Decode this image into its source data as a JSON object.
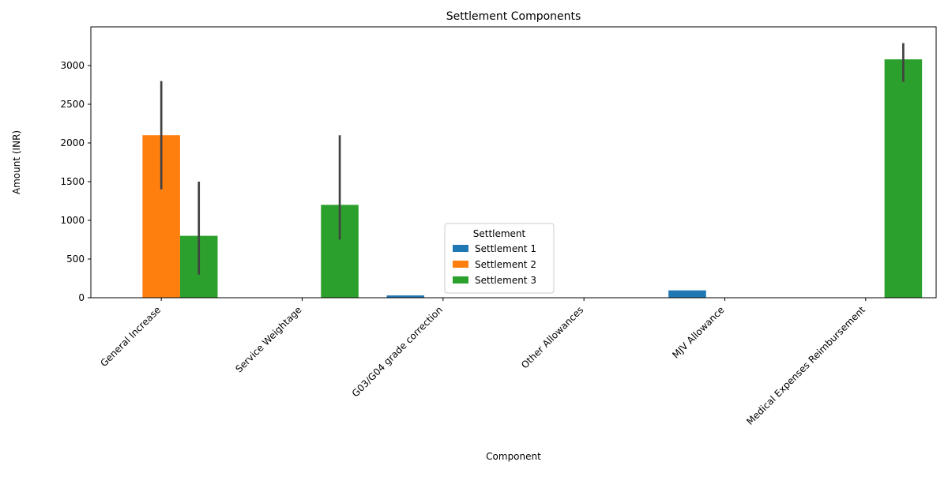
{
  "chart_data": {
    "type": "bar",
    "title": "Settlement Components",
    "xlabel": "Component",
    "ylabel": "Amount (INR)",
    "categories": [
      "General Increase",
      "Service Weightage",
      "G03/G04 grade correction",
      "Other Allowances",
      "MJV Allowance",
      "Medical Expenses Reimbursement"
    ],
    "ylim": [
      0,
      3500
    ],
    "yticks": [
      0,
      500,
      1000,
      1500,
      2000,
      2500,
      3000
    ],
    "legend": {
      "title": "Settlement",
      "placement": "bottom-center"
    },
    "series": [
      {
        "name": "Settlement 1",
        "color": "#1f77b4",
        "values": [
          null,
          null,
          30,
          null,
          95,
          null
        ],
        "error_low": [
          null,
          null,
          null,
          null,
          null,
          null
        ],
        "error_high": [
          null,
          null,
          null,
          null,
          null,
          null
        ]
      },
      {
        "name": "Settlement 2",
        "color": "#ff7f0e",
        "values": [
          2100,
          null,
          null,
          null,
          null,
          null
        ],
        "error_low": [
          1400,
          null,
          null,
          null,
          null,
          null
        ],
        "error_high": [
          2800,
          null,
          null,
          null,
          null,
          null
        ]
      },
      {
        "name": "Settlement 3",
        "color": "#2ca02c",
        "values": [
          800,
          1200,
          null,
          null,
          null,
          3080
        ],
        "error_low": [
          300,
          750,
          null,
          null,
          null,
          2790
        ],
        "error_high": [
          1500,
          2100,
          null,
          null,
          null,
          3290
        ]
      }
    ],
    "error_bar_color": "#424242",
    "grid": false
  }
}
